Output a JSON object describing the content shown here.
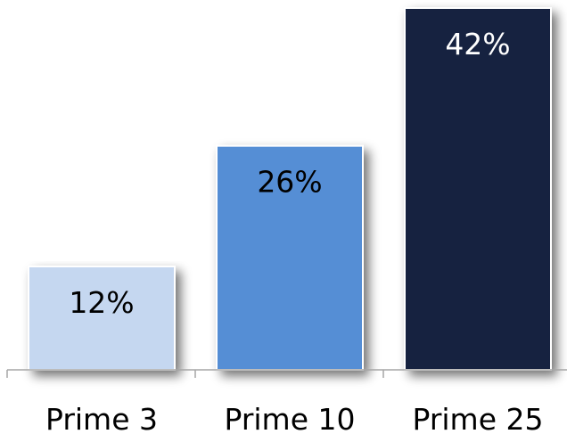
{
  "chart_data": {
    "type": "bar",
    "categories": [
      "Prime 3",
      "Prime 10",
      "Prime 25"
    ],
    "values": [
      12,
      26,
      42
    ],
    "value_labels": [
      "12%",
      "26%",
      "42%"
    ],
    "bar_colors": [
      "#c5d7f0",
      "#558ed5",
      "#13243f"
    ],
    "label_colors": [
      "#000000",
      "#000000",
      "#ffffff"
    ],
    "ylim": [
      0,
      42
    ],
    "grid": false,
    "legend": "none"
  }
}
